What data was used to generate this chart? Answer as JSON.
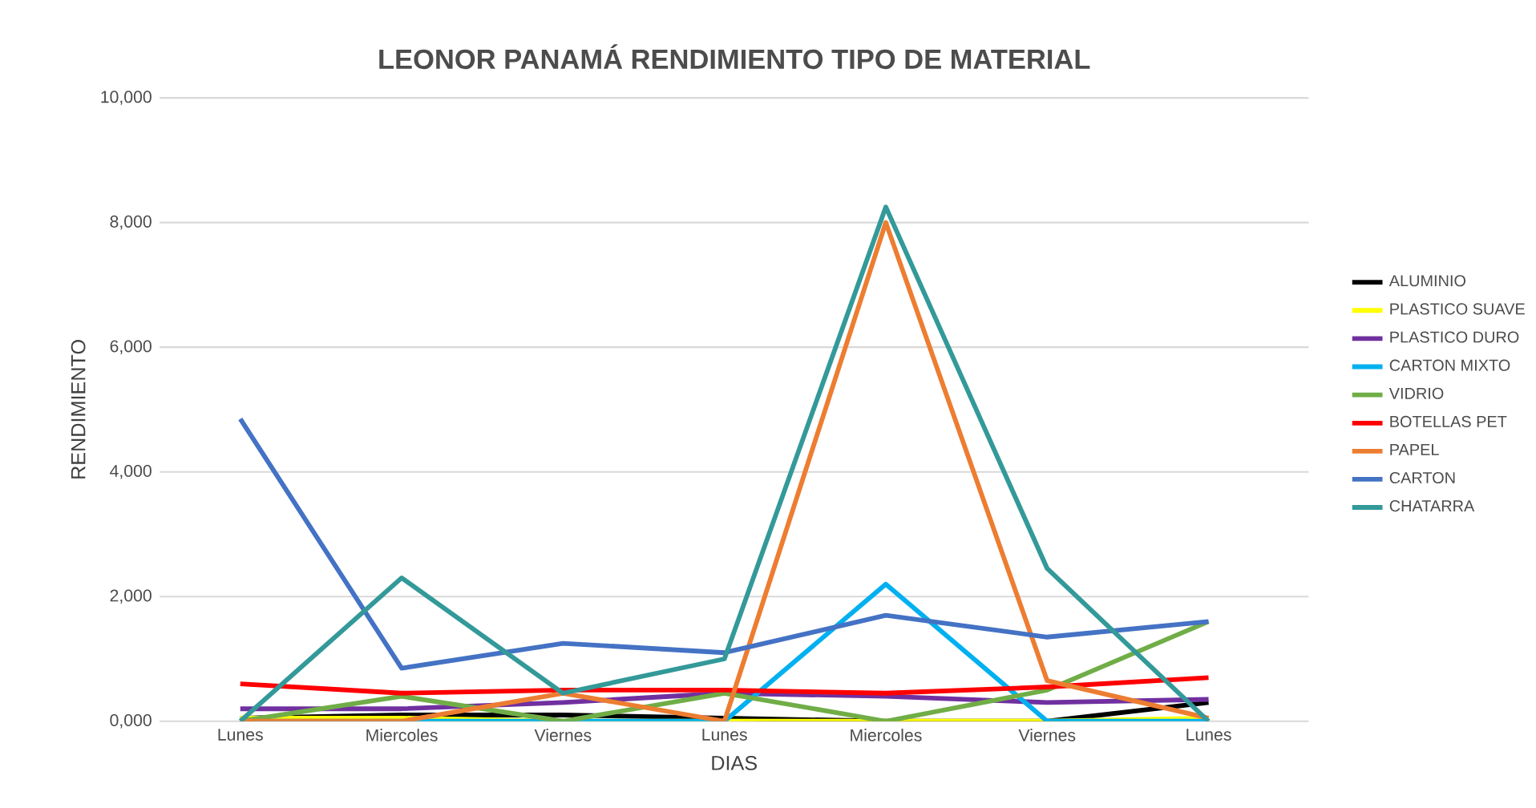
{
  "chart_data": {
    "type": "line",
    "title": "LEONOR PANAMÁ RENDIMIENTO TIPO DE MATERIAL",
    "xlabel": "DIAS",
    "ylabel": "RENDIMIENTO",
    "categories": [
      "Lunes",
      "Miercoles",
      "Viernes",
      "Lunes",
      "Miercoles",
      "Viernes",
      "Lunes"
    ],
    "ylim": [
      0,
      10000
    ],
    "yticks": [
      {
        "value": 0,
        "label": "0,000"
      },
      {
        "value": 2000,
        "label": "2,000"
      },
      {
        "value": 4000,
        "label": "4,000"
      },
      {
        "value": 6000,
        "label": "6,000"
      },
      {
        "value": 8000,
        "label": "8,000"
      },
      {
        "value": 10000,
        "label": "10,000"
      }
    ],
    "grid": "y",
    "legend": "right",
    "marker": "none",
    "line_style": "solid",
    "series": [
      {
        "name": "ALUMINIO",
        "color": "#000000",
        "values": [
          50,
          100,
          100,
          50,
          0,
          0,
          300
        ]
      },
      {
        "name": "PLASTICO SUAVE",
        "color": "#ffff00",
        "values": [
          50,
          50,
          0,
          0,
          0,
          0,
          50
        ]
      },
      {
        "name": "PLASTICO DURO",
        "color": "#7030a0",
        "values": [
          200,
          200,
          300,
          450,
          400,
          300,
          350
        ]
      },
      {
        "name": "CARTON MIXTO",
        "color": "#00b0f0",
        "values": [
          0,
          0,
          0,
          0,
          2200,
          0,
          0
        ]
      },
      {
        "name": "VIDRIO",
        "color": "#70ad47",
        "values": [
          0,
          400,
          0,
          450,
          0,
          500,
          1600
        ]
      },
      {
        "name": "BOTELLAS PET",
        "color": "#ff0000",
        "values": [
          600,
          450,
          500,
          500,
          450,
          550,
          700
        ]
      },
      {
        "name": "PAPEL",
        "color": "#ed7d31",
        "values": [
          0,
          0,
          450,
          0,
          8000,
          650,
          50
        ]
      },
      {
        "name": "CARTON",
        "color": "#4472c4",
        "values": [
          4850,
          850,
          1250,
          1100,
          1700,
          1350,
          1600
        ]
      },
      {
        "name": "CHATARRA",
        "color": "#339999",
        "values": [
          0,
          2300,
          450,
          1000,
          8250,
          2450,
          0
        ]
      }
    ]
  }
}
